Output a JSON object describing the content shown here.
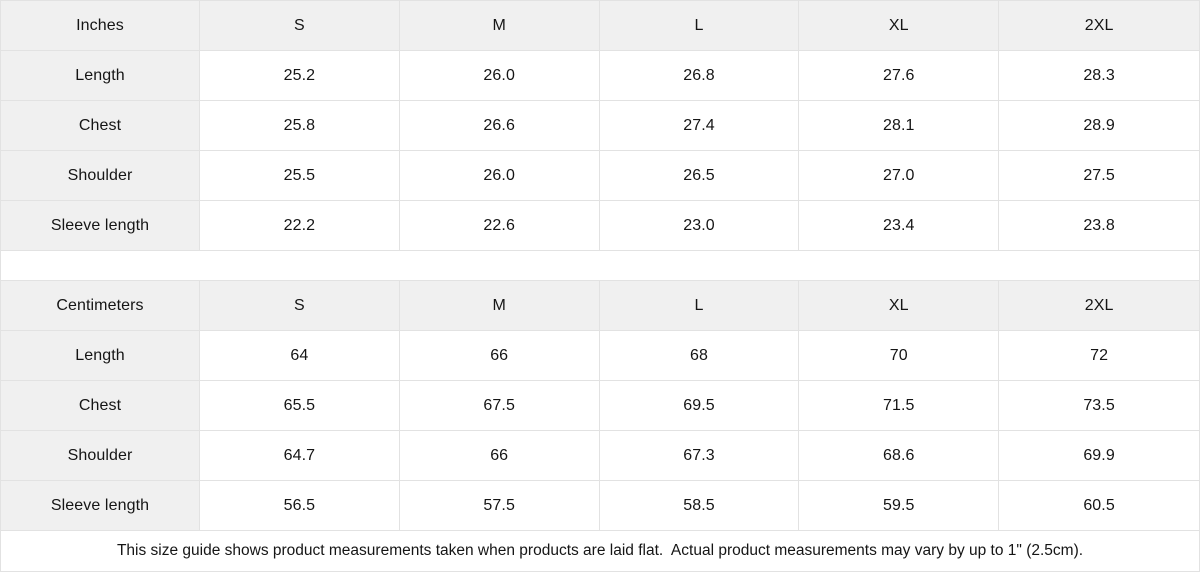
{
  "tables": [
    {
      "unit_label": "Inches",
      "sizes": [
        "S",
        "M",
        "L",
        "XL",
        "2XL"
      ],
      "rows": [
        {
          "label": "Length",
          "values": [
            "25.2",
            "26.0",
            "26.8",
            "27.6",
            "28.3"
          ]
        },
        {
          "label": "Chest",
          "values": [
            "25.8",
            "26.6",
            "27.4",
            "28.1",
            "28.9"
          ]
        },
        {
          "label": "Shoulder",
          "values": [
            "25.5",
            "26.0",
            "26.5",
            "27.0",
            "27.5"
          ]
        },
        {
          "label": "Sleeve length",
          "values": [
            "22.2",
            "22.6",
            "23.0",
            "23.4",
            "23.8"
          ]
        }
      ]
    },
    {
      "unit_label": "Centimeters",
      "sizes": [
        "S",
        "M",
        "L",
        "XL",
        "2XL"
      ],
      "rows": [
        {
          "label": "Length",
          "values": [
            "64",
            "66",
            "68",
            "70",
            "72"
          ]
        },
        {
          "label": "Chest",
          "values": [
            "65.5",
            "67.5",
            "69.5",
            "71.5",
            "73.5"
          ]
        },
        {
          "label": "Shoulder",
          "values": [
            "64.7",
            "66",
            "67.3",
            "68.6",
            "69.9"
          ]
        },
        {
          "label": "Sleeve length",
          "values": [
            "56.5",
            "57.5",
            "58.5",
            "59.5",
            "60.5"
          ]
        }
      ]
    }
  ],
  "footer": {
    "note": "This size guide shows product measurements taken when products are laid flat.  Actual product measurements may vary by up to 1\" (2.5cm)."
  },
  "colors": {
    "header_bg": "#f0f0f0",
    "border": "#e2e2e2",
    "text": "#151515"
  },
  "chart_data": [
    {
      "type": "table",
      "title": "Inches",
      "columns": [
        "Inches",
        "S",
        "M",
        "L",
        "XL",
        "2XL"
      ],
      "rows": [
        [
          "Length",
          25.2,
          26.0,
          26.8,
          27.6,
          28.3
        ],
        [
          "Chest",
          25.8,
          26.6,
          27.4,
          28.1,
          28.9
        ],
        [
          "Shoulder",
          25.5,
          26.0,
          26.5,
          27.0,
          27.5
        ],
        [
          "Sleeve length",
          22.2,
          22.6,
          23.0,
          23.4,
          23.8
        ]
      ]
    },
    {
      "type": "table",
      "title": "Centimeters",
      "columns": [
        "Centimeters",
        "S",
        "M",
        "L",
        "XL",
        "2XL"
      ],
      "rows": [
        [
          "Length",
          64,
          66,
          68,
          70,
          72
        ],
        [
          "Chest",
          65.5,
          67.5,
          69.5,
          71.5,
          73.5
        ],
        [
          "Shoulder",
          64.7,
          66,
          67.3,
          68.6,
          69.9
        ],
        [
          "Sleeve length",
          56.5,
          57.5,
          58.5,
          59.5,
          60.5
        ]
      ]
    }
  ]
}
